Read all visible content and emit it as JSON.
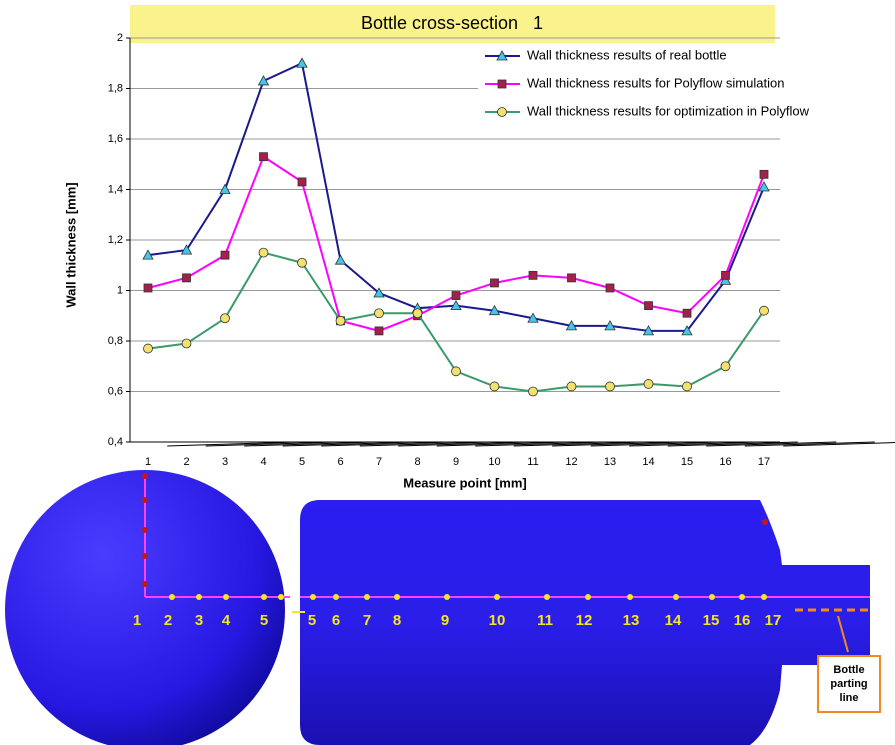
{
  "chart_data": {
    "type": "line",
    "title": "Bottle cross-section   1",
    "x_label": "Measure point [mm]",
    "y_label": "Wall thickness [mm]",
    "categories": [
      "1",
      "2",
      "3",
      "4",
      "5",
      "6",
      "7",
      "8",
      "9",
      "10",
      "11",
      "12",
      "13",
      "14",
      "15",
      "16",
      "17"
    ],
    "ylim": [
      0.4,
      2
    ],
    "yticks": [
      {
        "value": 0.4,
        "label": "0,4"
      },
      {
        "value": 0.6,
        "label": "0,6"
      },
      {
        "value": 0.8,
        "label": "0,8"
      },
      1,
      {
        "value": 1.2,
        "label": "1,2"
      },
      {
        "value": 1.4,
        "label": "1,4"
      },
      {
        "value": 1.6,
        "label": "1,6"
      },
      {
        "value": 1.8,
        "label": "1,8"
      },
      2
    ],
    "grid": true,
    "legend": "top-right",
    "series": [
      {
        "name": "Wall thickness results of real bottle",
        "color": "#1a1a8c",
        "marker": "triangle",
        "marker_color": "#45c4ec",
        "values": [
          1.14,
          1.16,
          1.4,
          1.83,
          1.9,
          1.12,
          0.99,
          0.93,
          0.94,
          0.92,
          0.89,
          0.86,
          0.86,
          0.84,
          0.84,
          1.04,
          1.41
        ]
      },
      {
        "name": "Wall thickness results for Polyflow simulation",
        "color": "#ff00ff",
        "marker": "square",
        "marker_color": "#a3204c",
        "values": [
          1.01,
          1.05,
          1.14,
          1.53,
          1.43,
          0.88,
          0.84,
          0.9,
          0.98,
          1.03,
          1.06,
          1.05,
          1.01,
          0.94,
          0.91,
          1.06,
          1.46
        ]
      },
      {
        "name": "Wall thickness results for optimization in Polyflow",
        "color": "#3a9a6a",
        "marker": "circle",
        "marker_color": "#f2e070",
        "values": [
          0.77,
          0.79,
          0.89,
          1.15,
          1.11,
          0.88,
          0.91,
          0.91,
          0.68,
          0.62,
          0.6,
          0.62,
          0.62,
          0.63,
          0.62,
          0.7,
          0.92
        ]
      }
    ]
  },
  "illustration": {
    "left_labels": [
      "1",
      "2",
      "3",
      "4",
      "5"
    ],
    "right_labels": [
      "5",
      "6",
      "7",
      "8",
      "9",
      "10",
      "11",
      "12",
      "13",
      "14",
      "15",
      "16",
      "17"
    ],
    "callout_lines": [
      "Bottle",
      "parting",
      "line"
    ]
  }
}
